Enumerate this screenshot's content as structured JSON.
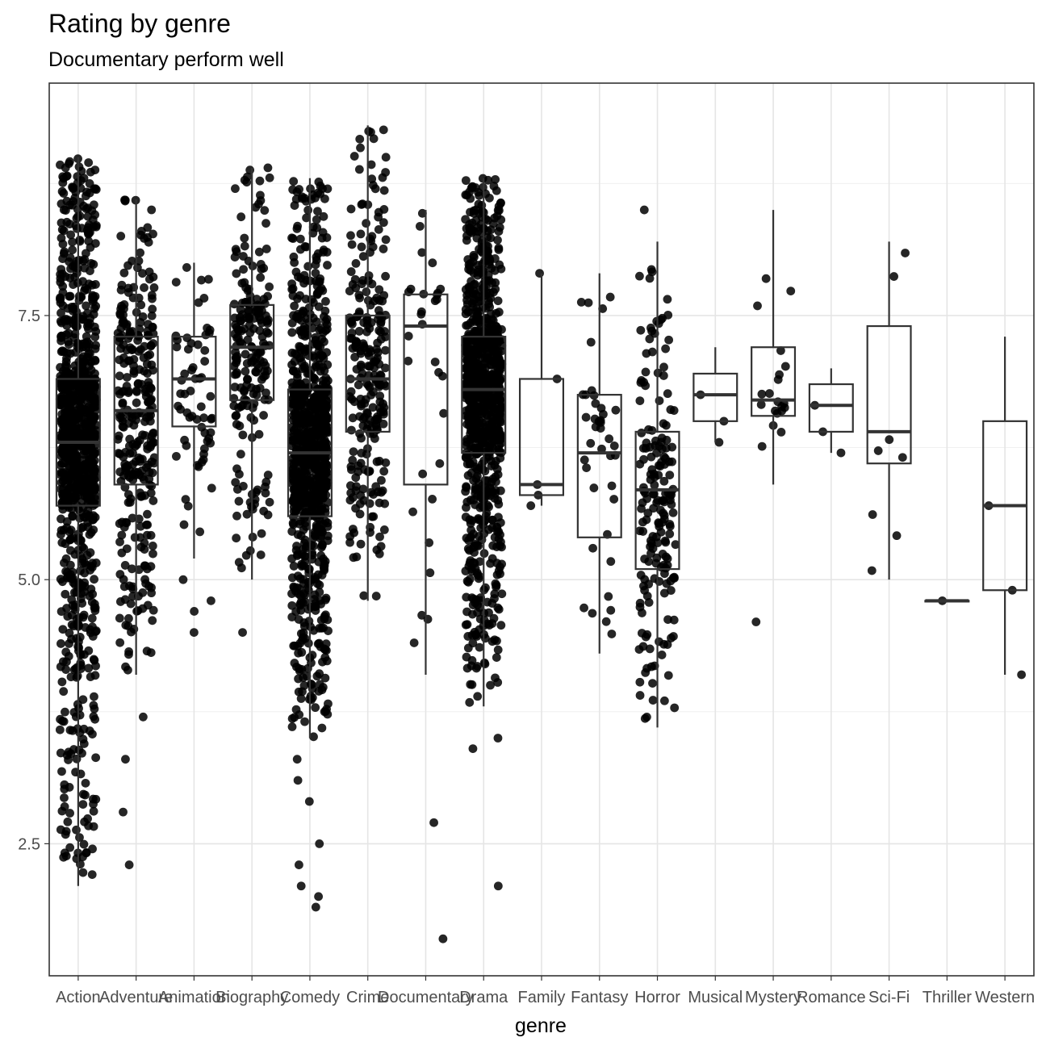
{
  "chart_data": {
    "type": "boxplot",
    "title": "Rating by genre",
    "subtitle": "Documentary perform well",
    "xlabel": "genre",
    "ylabel": "",
    "ylim": [
      1.25,
      9.7
    ],
    "y_ticks": [
      2.5,
      5.0,
      7.5
    ],
    "y_tick_labels": [
      "2.5",
      "5.0",
      "7.5"
    ],
    "grid": true,
    "legend": "none",
    "categories": [
      "Action",
      "Adventure",
      "Animation",
      "Biography",
      "Comedy",
      "Crime",
      "Documentary",
      "Drama",
      "Family",
      "Fantasy",
      "Horror",
      "Musical",
      "Mystery",
      "Romance",
      "Sci-Fi",
      "Thriller",
      "Western"
    ],
    "boxes": [
      {
        "genre": "Action",
        "whisker_low": 2.1,
        "q1": 5.7,
        "median": 6.3,
        "q3": 6.9,
        "whisker_high": 9.0,
        "approx_count": 1000
      },
      {
        "genre": "Adventure",
        "whisker_low": 4.1,
        "q1": 5.9,
        "median": 6.6,
        "q3": 7.3,
        "whisker_high": 8.6,
        "approx_count": 300,
        "outliers": [
          3.7,
          3.3,
          2.8,
          2.3
        ]
      },
      {
        "genre": "Animation",
        "whisker_low": 5.2,
        "q1": 6.45,
        "median": 6.9,
        "q3": 7.3,
        "whisker_high": 8.0,
        "approx_count": 60,
        "outliers": [
          5.0,
          4.8,
          4.7,
          4.5
        ]
      },
      {
        "genre": "Biography",
        "whisker_low": 5.0,
        "q1": 6.7,
        "median": 7.2,
        "q3": 7.6,
        "whisker_high": 8.9,
        "approx_count": 200,
        "outliers": [
          4.5
        ]
      },
      {
        "genre": "Comedy",
        "whisker_low": 3.5,
        "q1": 5.6,
        "median": 6.2,
        "q3": 6.8,
        "whisker_high": 8.8,
        "approx_count": 900,
        "outliers": [
          3.3,
          3.1,
          2.9,
          2.5,
          2.3,
          2.1,
          2.0,
          1.9
        ]
      },
      {
        "genre": "Crime",
        "whisker_low": 4.8,
        "q1": 6.4,
        "median": 6.9,
        "q3": 7.5,
        "whisker_high": 9.3,
        "approx_count": 250
      },
      {
        "genre": "Documentary",
        "whisker_low": 4.1,
        "q1": 5.9,
        "median": 7.4,
        "q3": 7.7,
        "whisker_high": 8.5,
        "approx_count": 30,
        "outliers": [
          2.7,
          1.6
        ]
      },
      {
        "genre": "Drama",
        "whisker_low": 3.8,
        "q1": 6.2,
        "median": 6.8,
        "q3": 7.3,
        "whisker_high": 8.8,
        "approx_count": 900,
        "outliers": [
          3.5,
          3.4,
          2.1
        ]
      },
      {
        "genre": "Family",
        "whisker_low": 5.7,
        "q1": 5.8,
        "median": 5.9,
        "q3": 6.9,
        "whisker_high": 7.9,
        "approx_count": 5
      },
      {
        "genre": "Fantasy",
        "whisker_low": 4.3,
        "q1": 5.4,
        "median": 6.2,
        "q3": 6.75,
        "whisker_high": 7.9,
        "approx_count": 40
      },
      {
        "genre": "Horror",
        "whisker_low": 3.6,
        "q1": 5.1,
        "median": 5.85,
        "q3": 6.4,
        "whisker_high": 8.2,
        "approx_count": 180,
        "outliers": [
          8.5
        ]
      },
      {
        "genre": "Musical",
        "whisker_low": 6.3,
        "q1": 6.5,
        "median": 6.75,
        "q3": 6.95,
        "whisker_high": 7.2,
        "approx_count": 3
      },
      {
        "genre": "Mystery",
        "whisker_low": 5.9,
        "q1": 6.55,
        "median": 6.7,
        "q3": 7.2,
        "whisker_high": 8.5,
        "approx_count": 20,
        "outliers": [
          4.6
        ]
      },
      {
        "genre": "Romance",
        "whisker_low": 6.2,
        "q1": 6.4,
        "median": 6.65,
        "q3": 6.85,
        "whisker_high": 7.0,
        "approx_count": 3
      },
      {
        "genre": "Sci-Fi",
        "whisker_low": 5.0,
        "q1": 6.1,
        "median": 6.4,
        "q3": 7.4,
        "whisker_high": 8.2,
        "approx_count": 8
      },
      {
        "genre": "Thriller",
        "whisker_low": 4.8,
        "q1": 4.8,
        "median": 4.8,
        "q3": 4.8,
        "whisker_high": 4.8,
        "approx_count": 1
      },
      {
        "genre": "Western",
        "whisker_low": 4.1,
        "q1": 4.9,
        "median": 5.7,
        "q3": 6.5,
        "whisker_high": 7.3,
        "approx_count": 3
      }
    ]
  }
}
